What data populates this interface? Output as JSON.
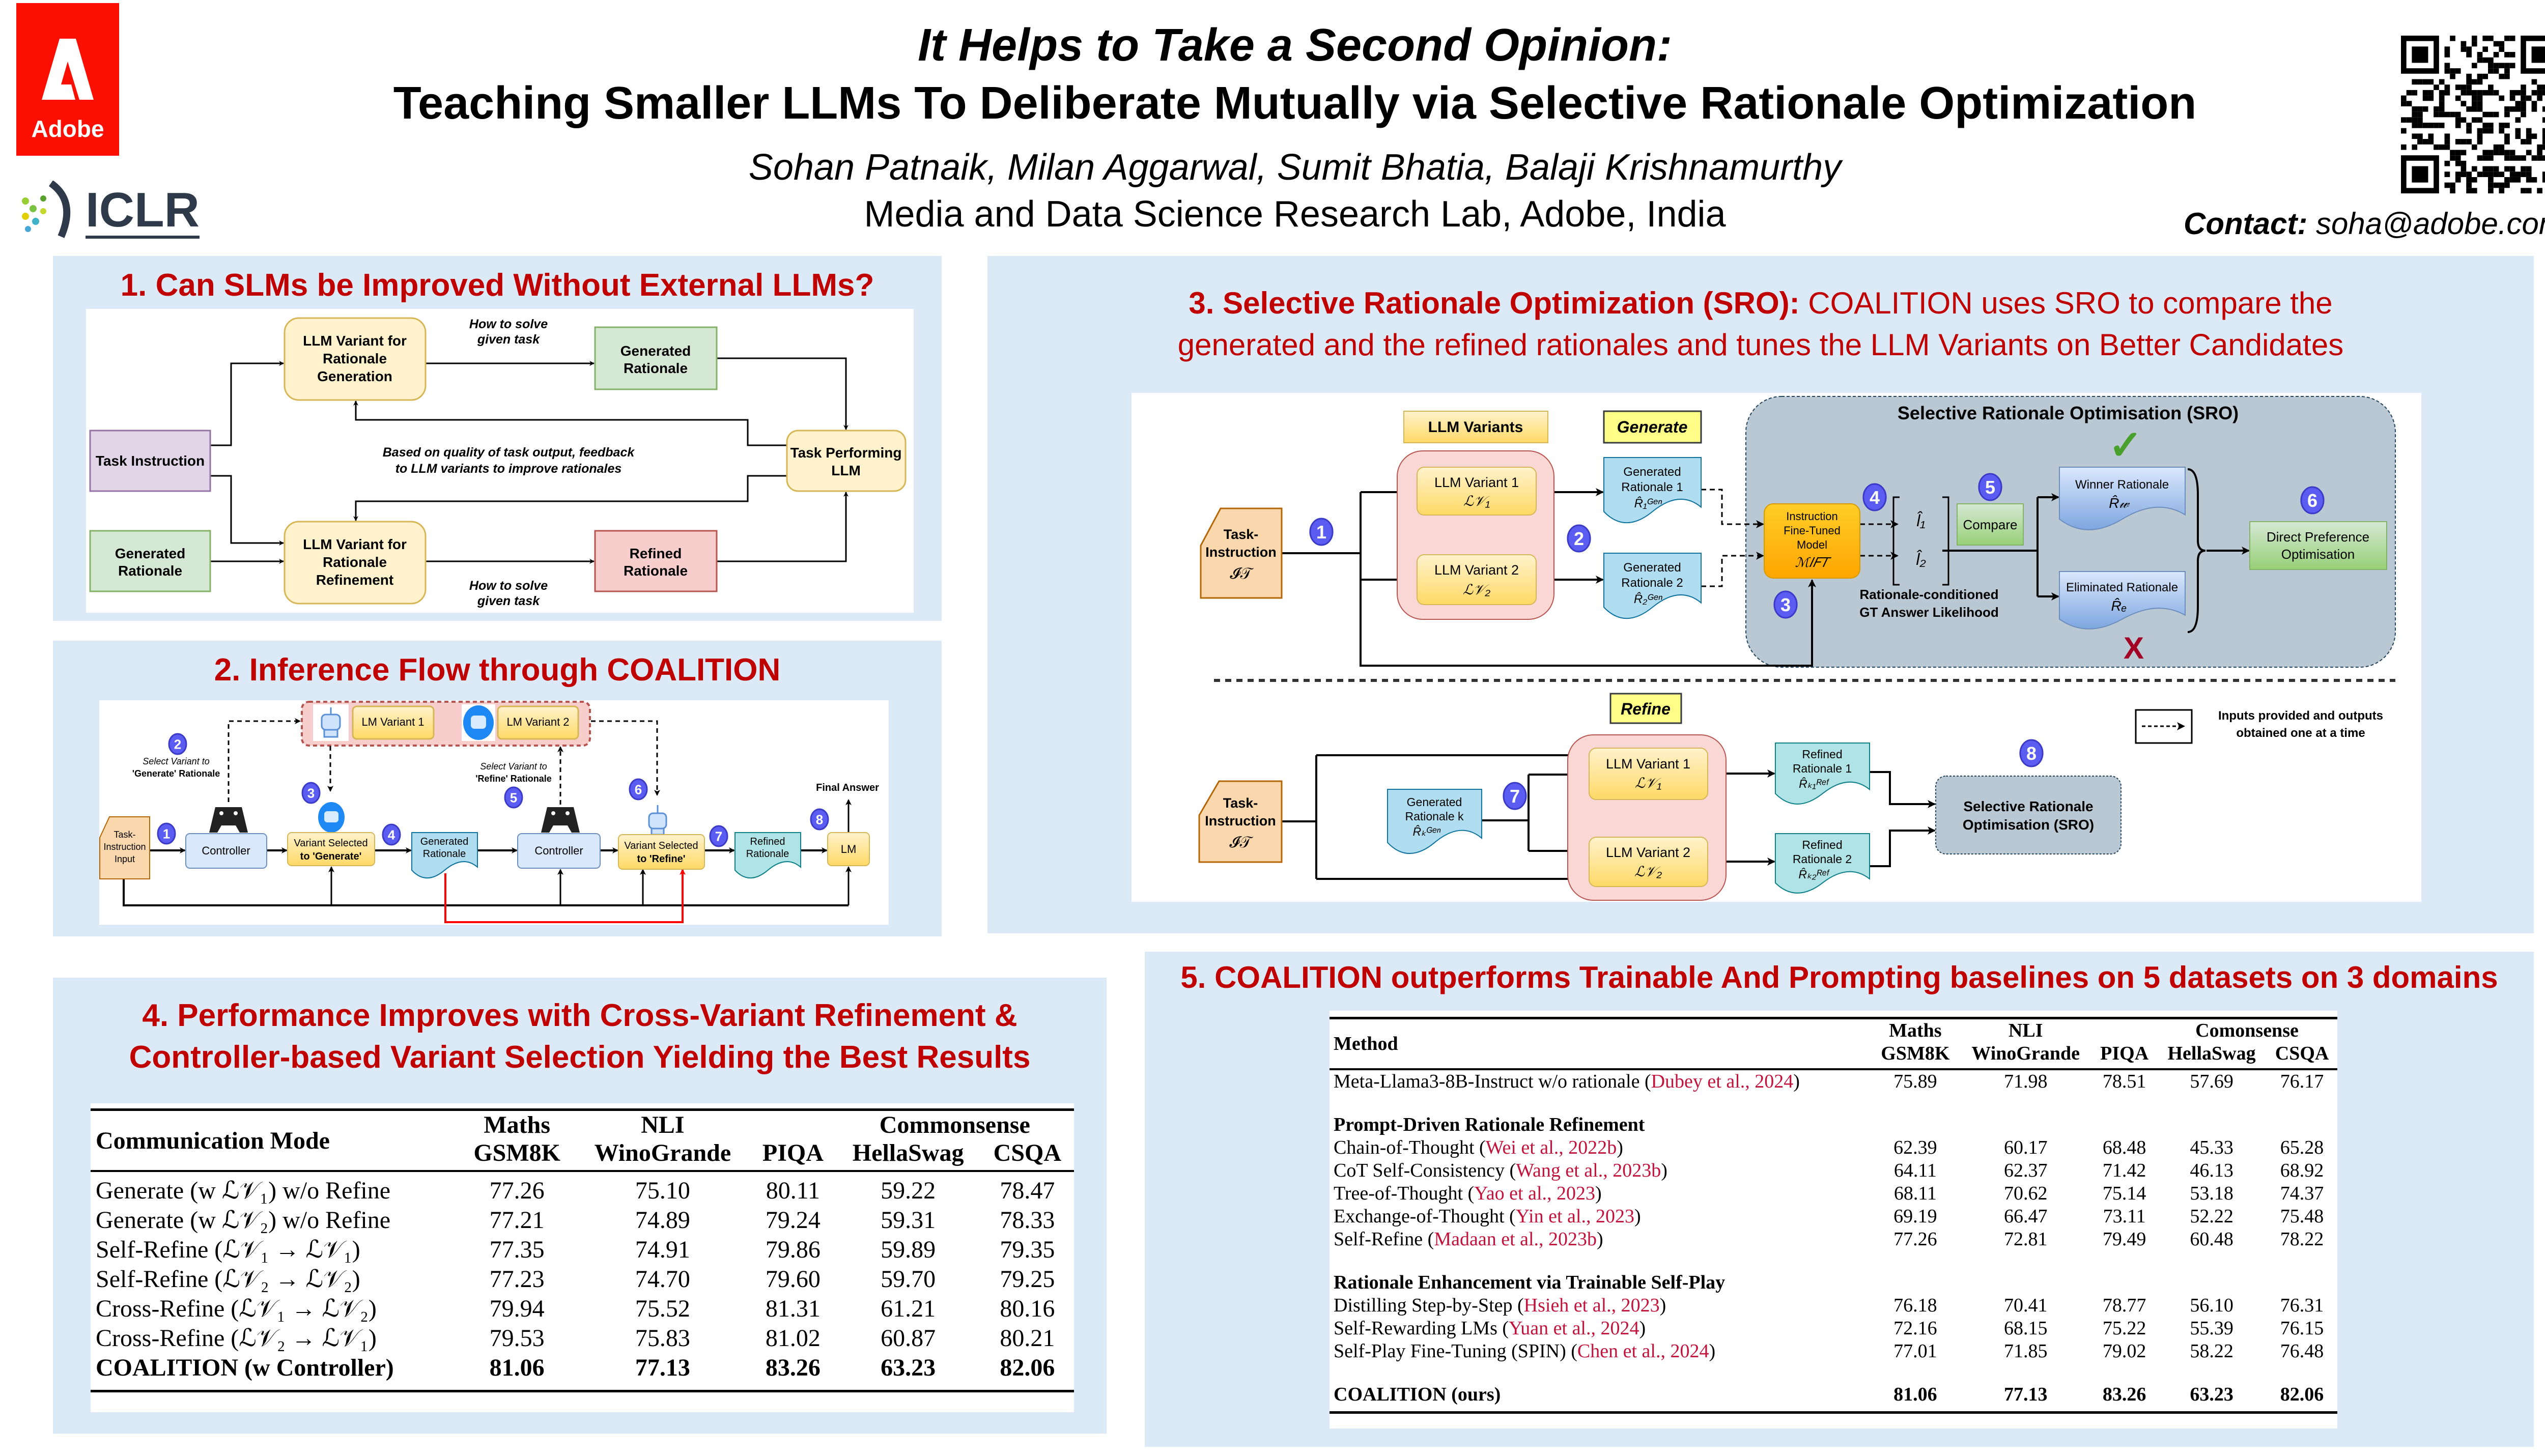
{
  "header": {
    "title_line1": "It Helps to Take a Second Opinion:",
    "title_line2": "Teaching Smaller LLMs To Deliberate Mutually via Selective Rationale Optimization",
    "authors": "Sohan Patnaik, Milan Aggarwal, Sumit Bhatia, Balaji Krishnamurthy",
    "affiliation": "Media and Data Science Research Lab, Adobe, India",
    "contact_label": "Contact:",
    "contact_email": "soha@adobe.com",
    "logo_adobe": "Adobe",
    "logo_iclr": "ICLR"
  },
  "colors": {
    "panel_bg": "#dce9f6",
    "title_red": "#c00000",
    "adobe_red": "#fa0f00",
    "step_circle": "#5a5cf2",
    "citation": "#c0143c"
  },
  "section1": {
    "title": "1.  Can SLMs be Improved Without External LLMs?",
    "task_instruction": "Task Instruction",
    "llm_gen": [
      "LLM Variant for",
      "Rationale",
      "Generation"
    ],
    "gen_rationale": [
      "Generated",
      "Rationale"
    ],
    "task_llm": [
      "Task Performing",
      "LLM"
    ],
    "gen_rationale_in": [
      "Generated",
      "Rationale"
    ],
    "llm_ref": [
      "LLM Variant for",
      "Rationale",
      "Refinement"
    ],
    "refined": [
      "Refined",
      "Rationale"
    ],
    "how_top": [
      "How to solve",
      "given task"
    ],
    "how_bottom": [
      "How to solve",
      "given task"
    ],
    "feedback": [
      "Based on quality of task output, feedback",
      "to LLM variants to improve rationales"
    ]
  },
  "section2": {
    "title": "2. Inference Flow through COALITION",
    "lm_variant_1": "LM Variant 1",
    "lm_variant_2": "LM Variant 2",
    "task_input": [
      "Task-",
      "Instruction",
      "Input"
    ],
    "controller_1": "Controller",
    "controller_2": "Controller",
    "select_gen": [
      "Select Variant to",
      "'Generate' Rationale"
    ],
    "variant_gen": [
      "Variant Selected",
      "to 'Generate'"
    ],
    "gen_rationale": [
      "Generated",
      "Rationale"
    ],
    "select_ref": [
      "Select Variant to",
      "'Refine' Rationale"
    ],
    "variant_ref": [
      "Variant Selected",
      "to 'Refine'"
    ],
    "refined": [
      "Refined",
      "Rationale"
    ],
    "lm": "LM",
    "final_answer": "Final Answer",
    "steps": [
      "1",
      "2",
      "3",
      "4",
      "5",
      "6",
      "7",
      "8"
    ]
  },
  "section3": {
    "title_bold": "3. Selective Rationale Optimization (SRO):",
    "title_rest_1": " COALITION uses SRO to compare the",
    "title_line2": "generated and the refined rationales and tunes the LLM Variants on Better Candidates",
    "task_instruction": [
      "Task-",
      "Instruction",
      "𝓘𝒯"
    ],
    "llm_variants_label": "LLM Variants",
    "generate_label": "Generate",
    "refine_label": "Refine",
    "lv1": [
      "LLM Variant 1",
      "ℒ𝒱₁"
    ],
    "lv2": [
      "LLM Variant 2",
      "ℒ𝒱₂"
    ],
    "gen_r1": [
      "Generated",
      "Rationale 1",
      "R̂₁ᴳᵉⁿ"
    ],
    "gen_r2": [
      "Generated",
      "Rationale 2",
      "R̂₂ᴳᵉⁿ"
    ],
    "sro_title": "Selective Rationale Optimisation (SRO)",
    "ift_model": [
      "Instruction",
      "Fine-Tuned",
      "Model",
      "ℳ𝐼𝐹𝑇"
    ],
    "l1": "l̂₁",
    "l2": "l̂₂",
    "compare": "Compare",
    "likelihood": [
      "Rationale-conditioned",
      "GT Answer Likelihood"
    ],
    "winner": [
      "Winner Rationale",
      "R̂𝓌"
    ],
    "eliminated": [
      "Eliminated Rationale",
      "R̂ₑ"
    ],
    "dpo": [
      "Direct Preference",
      "Optimisation"
    ],
    "check_mark": "✓",
    "cross_mark": "X",
    "legend": [
      "Inputs provided and outputs",
      "obtained one at a time"
    ],
    "gen_rk": [
      "Generated",
      "Rationale k",
      "R̂ₖᴳᵉⁿ"
    ],
    "ref_r1": [
      "Refined",
      "Rationale 1",
      "R̂ₖ₁ᴿᵉᶠ"
    ],
    "ref_r2": [
      "Refined",
      "Rationale 2",
      "R̂ₖ₂ᴿᵉᶠ"
    ],
    "sro_box": [
      "Selective Rationale",
      "Optimisation (SRO)"
    ],
    "steps": [
      "1",
      "2",
      "3",
      "4",
      "5",
      "6",
      "7",
      "8"
    ]
  },
  "section4": {
    "title_line1": "4. Performance Improves with Cross-Variant Refinement &",
    "title_line2": "Controller-based Variant Selection Yielding the Best Results",
    "header_first": "Communication Mode",
    "groups": [
      "Maths",
      "NLI",
      "Commonsense"
    ],
    "columns": [
      "GSM8K",
      "WinoGrande",
      "PIQA",
      "HellaSwag",
      "CSQA"
    ],
    "rows": [
      {
        "mode": "Generate (w ℒ𝒱₁) w/o Refine",
        "values": [
          "77.26",
          "75.10",
          "80.11",
          "59.22",
          "78.47"
        ]
      },
      {
        "mode": "Generate (w ℒ𝒱₂) w/o Refine",
        "values": [
          "77.21",
          "74.89",
          "79.24",
          "59.31",
          "78.33"
        ]
      },
      {
        "mode": "Self-Refine (ℒ𝒱₁ → ℒ𝒱₁)",
        "values": [
          "77.35",
          "74.91",
          "79.86",
          "59.89",
          "79.35"
        ]
      },
      {
        "mode": "Self-Refine (ℒ𝒱₂ → ℒ𝒱₂)",
        "values": [
          "77.23",
          "74.70",
          "79.60",
          "59.70",
          "79.25"
        ]
      },
      {
        "mode": "Cross-Refine (ℒ𝒱₁ → ℒ𝒱₂)",
        "values": [
          "79.94",
          "75.52",
          "81.31",
          "61.21",
          "80.16"
        ]
      },
      {
        "mode": "Cross-Refine (ℒ𝒱₂ → ℒ𝒱₁)",
        "values": [
          "79.53",
          "75.83",
          "81.02",
          "60.87",
          "80.21"
        ]
      },
      {
        "mode": "COALITION (w Controller)",
        "values": [
          "81.06",
          "77.13",
          "83.26",
          "63.23",
          "82.06"
        ],
        "bold": true
      }
    ]
  },
  "section5": {
    "title": "5. COALITION outperforms Trainable And Prompting baselines on 5 datasets on 3 domains",
    "header_first": "Method",
    "groups": [
      "Maths",
      "NLI",
      "Comonsense"
    ],
    "columns": [
      "GSM8K",
      "WinoGrande",
      "PIQA",
      "HellaSwag",
      "CSQA"
    ],
    "baseline": {
      "name": "Meta-Llama3-8B-Instruct w/o rationale ",
      "cite": "Dubey et al., 2024",
      "values": [
        "75.89",
        "71.98",
        "78.51",
        "57.69",
        "76.17"
      ]
    },
    "group_prompt": "Prompt-Driven Rationale Refinement",
    "prompt_rows": [
      {
        "name": "Chain-of-Thought ",
        "cite": "Wei et al., 2022b",
        "values": [
          "62.39",
          "60.17",
          "68.48",
          "45.33",
          "65.28"
        ]
      },
      {
        "name": "CoT Self-Consistency ",
        "cite": "Wang et al., 2023b",
        "values": [
          "64.11",
          "62.37",
          "71.42",
          "46.13",
          "68.92"
        ]
      },
      {
        "name": "Tree-of-Thought ",
        "cite": "Yao et al., 2023",
        "values": [
          "68.11",
          "70.62",
          "75.14",
          "53.18",
          "74.37"
        ]
      },
      {
        "name": "Exchange-of-Thought ",
        "cite": "Yin et al., 2023",
        "values": [
          "69.19",
          "66.47",
          "73.11",
          "52.22",
          "75.48"
        ]
      },
      {
        "name": "Self-Refine ",
        "cite": "Madaan et al., 2023b",
        "values": [
          "77.26",
          "72.81",
          "79.49",
          "60.48",
          "78.22"
        ]
      }
    ],
    "group_trainable": "Rationale Enhancement via Trainable Self-Play",
    "trainable_rows": [
      {
        "name": "Distilling Step-by-Step ",
        "cite": "Hsieh et al., 2023",
        "values": [
          "76.18",
          "70.41",
          "78.77",
          "56.10",
          "76.31"
        ]
      },
      {
        "name": "Self-Rewarding LMs ",
        "cite": "Yuan et al., 2024",
        "values": [
          "72.16",
          "68.15",
          "75.22",
          "55.39",
          "76.15"
        ]
      },
      {
        "name": "Self-Play Fine-Tuning (SPIN) ",
        "cite": "Chen et al., 2024",
        "values": [
          "77.01",
          "71.85",
          "79.02",
          "58.22",
          "76.48"
        ]
      }
    ],
    "ours": {
      "name": "COALITION (ours)",
      "values": [
        "81.06",
        "77.13",
        "83.26",
        "63.23",
        "82.06"
      ]
    }
  }
}
